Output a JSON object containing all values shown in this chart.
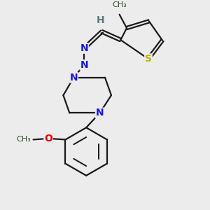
{
  "bg_color": "#ececec",
  "bond_color": "#1a1a1a",
  "N_color": "#1414ee",
  "S_color": "#b8b800",
  "O_color": "#ee0000",
  "H_color": "#5a7878",
  "methyl_color": "#2a4a2a",
  "bond_lw": 1.6,
  "dpi": 100,
  "figsize": [
    3.0,
    3.0
  ],
  "xlim": [
    0,
    10
  ],
  "ylim": [
    0,
    10
  ]
}
